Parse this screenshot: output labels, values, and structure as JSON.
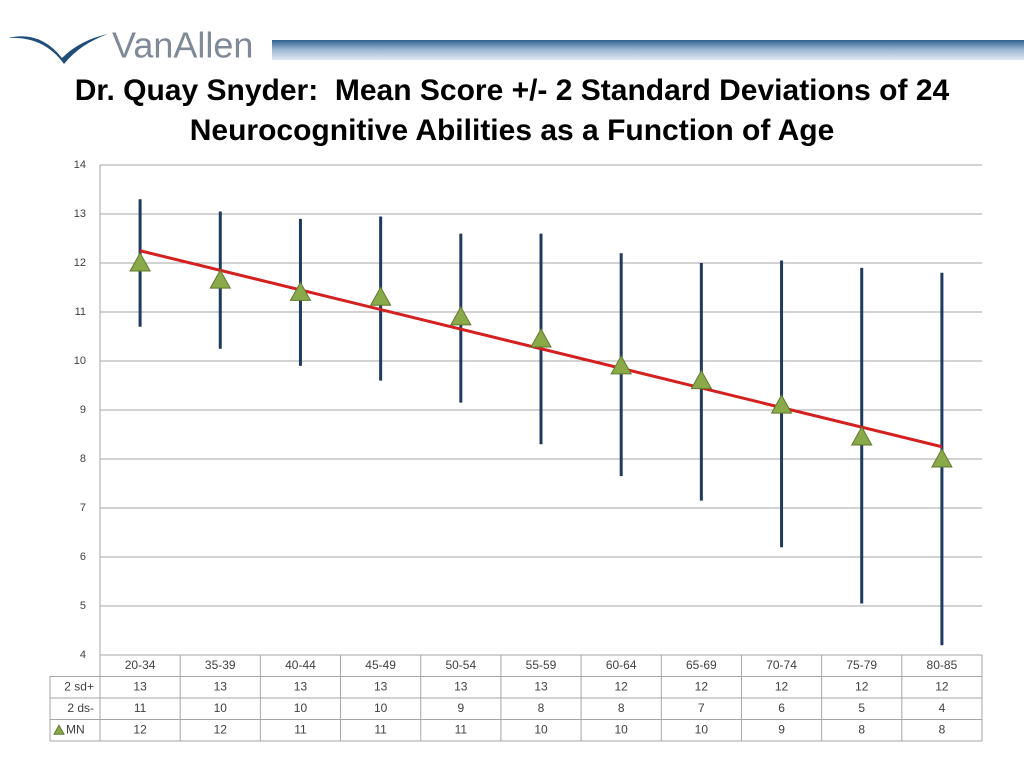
{
  "logo": "VanAllen",
  "chart_data": {
    "type": "errorbar",
    "title": [
      "Dr. Quay Snyder:  Mean Score +/- 2 Standard Deviations of 24",
      "Neurocognitive Abilities as a Function of Age"
    ],
    "categories": [
      "20-34",
      "35-39",
      "40-44",
      "45-49",
      "50-54",
      "55-59",
      "60-64",
      "65-69",
      "70-74",
      "75-79",
      "80-85"
    ],
    "series": [
      {
        "name": "2 sd+",
        "color": "#1f3a5f",
        "values": [
          13.3,
          13.05,
          12.9,
          12.95,
          12.6,
          12.6,
          12.2,
          12.0,
          12.05,
          11.9,
          11.8
        ],
        "value_labels": [
          "13",
          "13",
          "13",
          "13",
          "13",
          "13",
          "12",
          "12",
          "12",
          "12",
          "12"
        ]
      },
      {
        "name": "2 ds-",
        "color": "#1f3a5f",
        "values": [
          10.7,
          10.25,
          9.9,
          9.6,
          9.15,
          8.3,
          7.65,
          7.15,
          6.2,
          5.05,
          4.2
        ],
        "value_labels": [
          "11",
          "10",
          "10",
          "10",
          "9",
          "8",
          "8",
          "7",
          "6",
          "5",
          "4"
        ]
      },
      {
        "name": "MN",
        "color": "#8aaa4a",
        "values": [
          12.0,
          11.65,
          11.4,
          11.3,
          10.9,
          10.45,
          9.9,
          9.6,
          9.1,
          8.45,
          8.0
        ],
        "value_labels": [
          "12",
          "12",
          "11",
          "11",
          "11",
          "10",
          "10",
          "10",
          "9",
          "8",
          "8"
        ]
      }
    ],
    "trend": {
      "color": "#d42020",
      "start": 12.25,
      "end": 8.25
    },
    "ylim": [
      4,
      14
    ],
    "yticks": [
      4,
      5,
      6,
      7,
      8,
      9,
      10,
      11,
      12,
      13,
      14
    ],
    "grid": true
  }
}
